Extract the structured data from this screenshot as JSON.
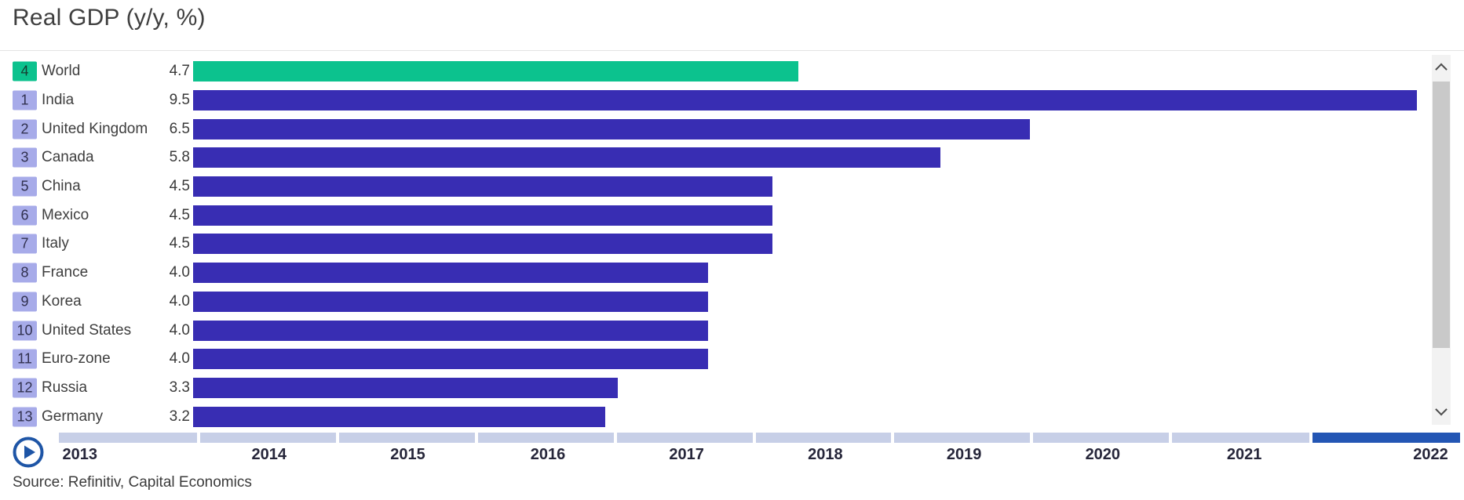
{
  "title": "Real GDP (y/y, %)",
  "source": "Source: Refinitiv, Capital Economics",
  "colors": {
    "bar_indigo": "#382db3",
    "bar_green": "#0cc28e",
    "badge_bg": "#a7abe9",
    "timeline_inactive": "#c7cfe7",
    "timeline_active": "#2356b4",
    "play_button_blue": "#1e55a6",
    "text": "#3d3d3d"
  },
  "icons": {
    "play": "play-icon",
    "scroll_up": "chevron-up-icon",
    "scroll_down": "chevron-down-icon"
  },
  "chart_data": {
    "type": "bar",
    "orientation": "horizontal",
    "title": "Real GDP (y/y, %)",
    "unit": "percent y/y",
    "xlim": [
      0,
      9.6
    ],
    "grid": false,
    "rows": [
      {
        "rank": "4",
        "label": "World",
        "value": 4.7,
        "display": "4.7",
        "highlight": true
      },
      {
        "rank": "1",
        "label": "India",
        "value": 9.5,
        "display": "9.5",
        "highlight": false
      },
      {
        "rank": "2",
        "label": "United Kingdom",
        "value": 6.5,
        "display": "6.5",
        "highlight": false
      },
      {
        "rank": "3",
        "label": "Canada",
        "value": 5.8,
        "display": "5.8",
        "highlight": false
      },
      {
        "rank": "5",
        "label": "China",
        "value": 4.5,
        "display": "4.5",
        "highlight": false
      },
      {
        "rank": "6",
        "label": "Mexico",
        "value": 4.5,
        "display": "4.5",
        "highlight": false
      },
      {
        "rank": "7",
        "label": "Italy",
        "value": 4.5,
        "display": "4.5",
        "highlight": false
      },
      {
        "rank": "8",
        "label": "France",
        "value": 4.0,
        "display": "4.0",
        "highlight": false
      },
      {
        "rank": "9",
        "label": "Korea",
        "value": 4.0,
        "display": "4.0",
        "highlight": false
      },
      {
        "rank": "10",
        "label": "United States",
        "value": 4.0,
        "display": "4.0",
        "highlight": false
      },
      {
        "rank": "11",
        "label": "Euro-zone",
        "value": 4.0,
        "display": "4.0",
        "highlight": false
      },
      {
        "rank": "12",
        "label": "Russia",
        "value": 3.3,
        "display": "3.3",
        "highlight": false
      },
      {
        "rank": "13",
        "label": "Germany",
        "value": 3.2,
        "display": "3.2",
        "highlight": false
      }
    ],
    "timeline": {
      "years": [
        "2013",
        "2014",
        "2015",
        "2016",
        "2017",
        "2018",
        "2019",
        "2020",
        "2021",
        "2022"
      ],
      "active_year": "2022"
    }
  }
}
